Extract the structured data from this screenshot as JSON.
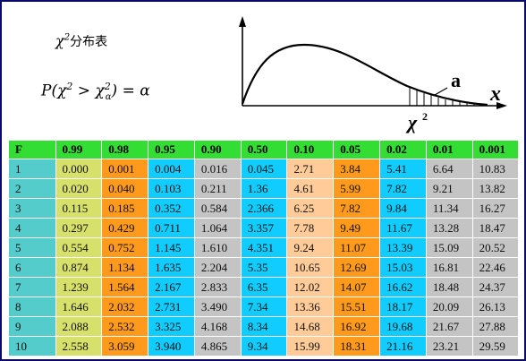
{
  "header": {
    "title_main": "χ",
    "title_sup": "2",
    "title_tail": "分布表",
    "formula": {
      "p": "P(",
      "chi1": "χ",
      "sup1": "2",
      "gt": " > ",
      "chi2": "χ",
      "sup2": "2",
      "sub2": "α",
      "close": ") = ",
      "alpha": "α"
    }
  },
  "figure": {
    "tail_label": "a",
    "axis_label": "x",
    "chi_label": "χ",
    "chi_sup": "2"
  },
  "colors": {
    "header_bg": "#33dd33",
    "col_f": "#55cccc",
    "col_yellow": "#d6e06a",
    "col_orange": "#ff9a1c",
    "col_blue": "#11ccff",
    "col_gray": "#c4c4c4",
    "col_peach": "#ffcc99",
    "curve": "#000000"
  },
  "table": {
    "headers": [
      "F",
      "0.99",
      "0.98",
      "0.95",
      "0.90",
      "0.50",
      "0.10",
      "0.05",
      "0.02",
      "0.01",
      "0.001"
    ],
    "column_colors": [
      "col_f",
      "col_yellow",
      "col_orange",
      "col_blue",
      "col_gray",
      "col_blue",
      "col_peach",
      "col_orange",
      "col_blue",
      "col_gray",
      "col_gray"
    ],
    "rows": [
      [
        "1",
        "0.000",
        "0.001",
        "0.004",
        "0.016",
        "0.045",
        "2.71",
        "3.84",
        "5.41",
        "6.64",
        "10.83"
      ],
      [
        "2",
        "0.020",
        "0.040",
        "0.103",
        "0.211",
        "1.36",
        "4.61",
        "5.99",
        "7.82",
        "9.21",
        "13.82"
      ],
      [
        "3",
        "0.115",
        "0.185",
        "0.352",
        "0.584",
        "2.366",
        "6.25",
        "7.82",
        "9.84",
        "11.34",
        "16.27"
      ],
      [
        "4",
        "0.297",
        "0.429",
        "0.711",
        "1.064",
        "3.357",
        "7.78",
        "9.49",
        "11.67",
        "13.28",
        "18.47"
      ],
      [
        "5",
        "0.554",
        "0.752",
        "1.145",
        "1.610",
        "4.351",
        "9.24",
        "11.07",
        "13.39",
        "15.09",
        "20.52"
      ],
      [
        "6",
        "0.874",
        "1.134",
        "1.635",
        "2.204",
        "5.35",
        "10.65",
        "12.69",
        "15.03",
        "16.81",
        "22.46"
      ],
      [
        "7",
        "1.239",
        "1.564",
        "2.167",
        "2.833",
        "6.35",
        "12.02",
        "14.07",
        "16.62",
        "18.48",
        "24.37"
      ],
      [
        "8",
        "1.646",
        "2.032",
        "2.731",
        "3.490",
        "7.34",
        "13.36",
        "15.51",
        "18.17",
        "20.09",
        "26.13"
      ],
      [
        "9",
        "2.088",
        "2.532",
        "3.325",
        "4.168",
        "8.34",
        "14.68",
        "16.92",
        "19.68",
        "21.67",
        "27.88"
      ],
      [
        "10",
        "2.558",
        "3.059",
        "3.940",
        "4.865",
        "9.34",
        "15.99",
        "18.31",
        "21.16",
        "23.21",
        "29.59"
      ]
    ]
  }
}
